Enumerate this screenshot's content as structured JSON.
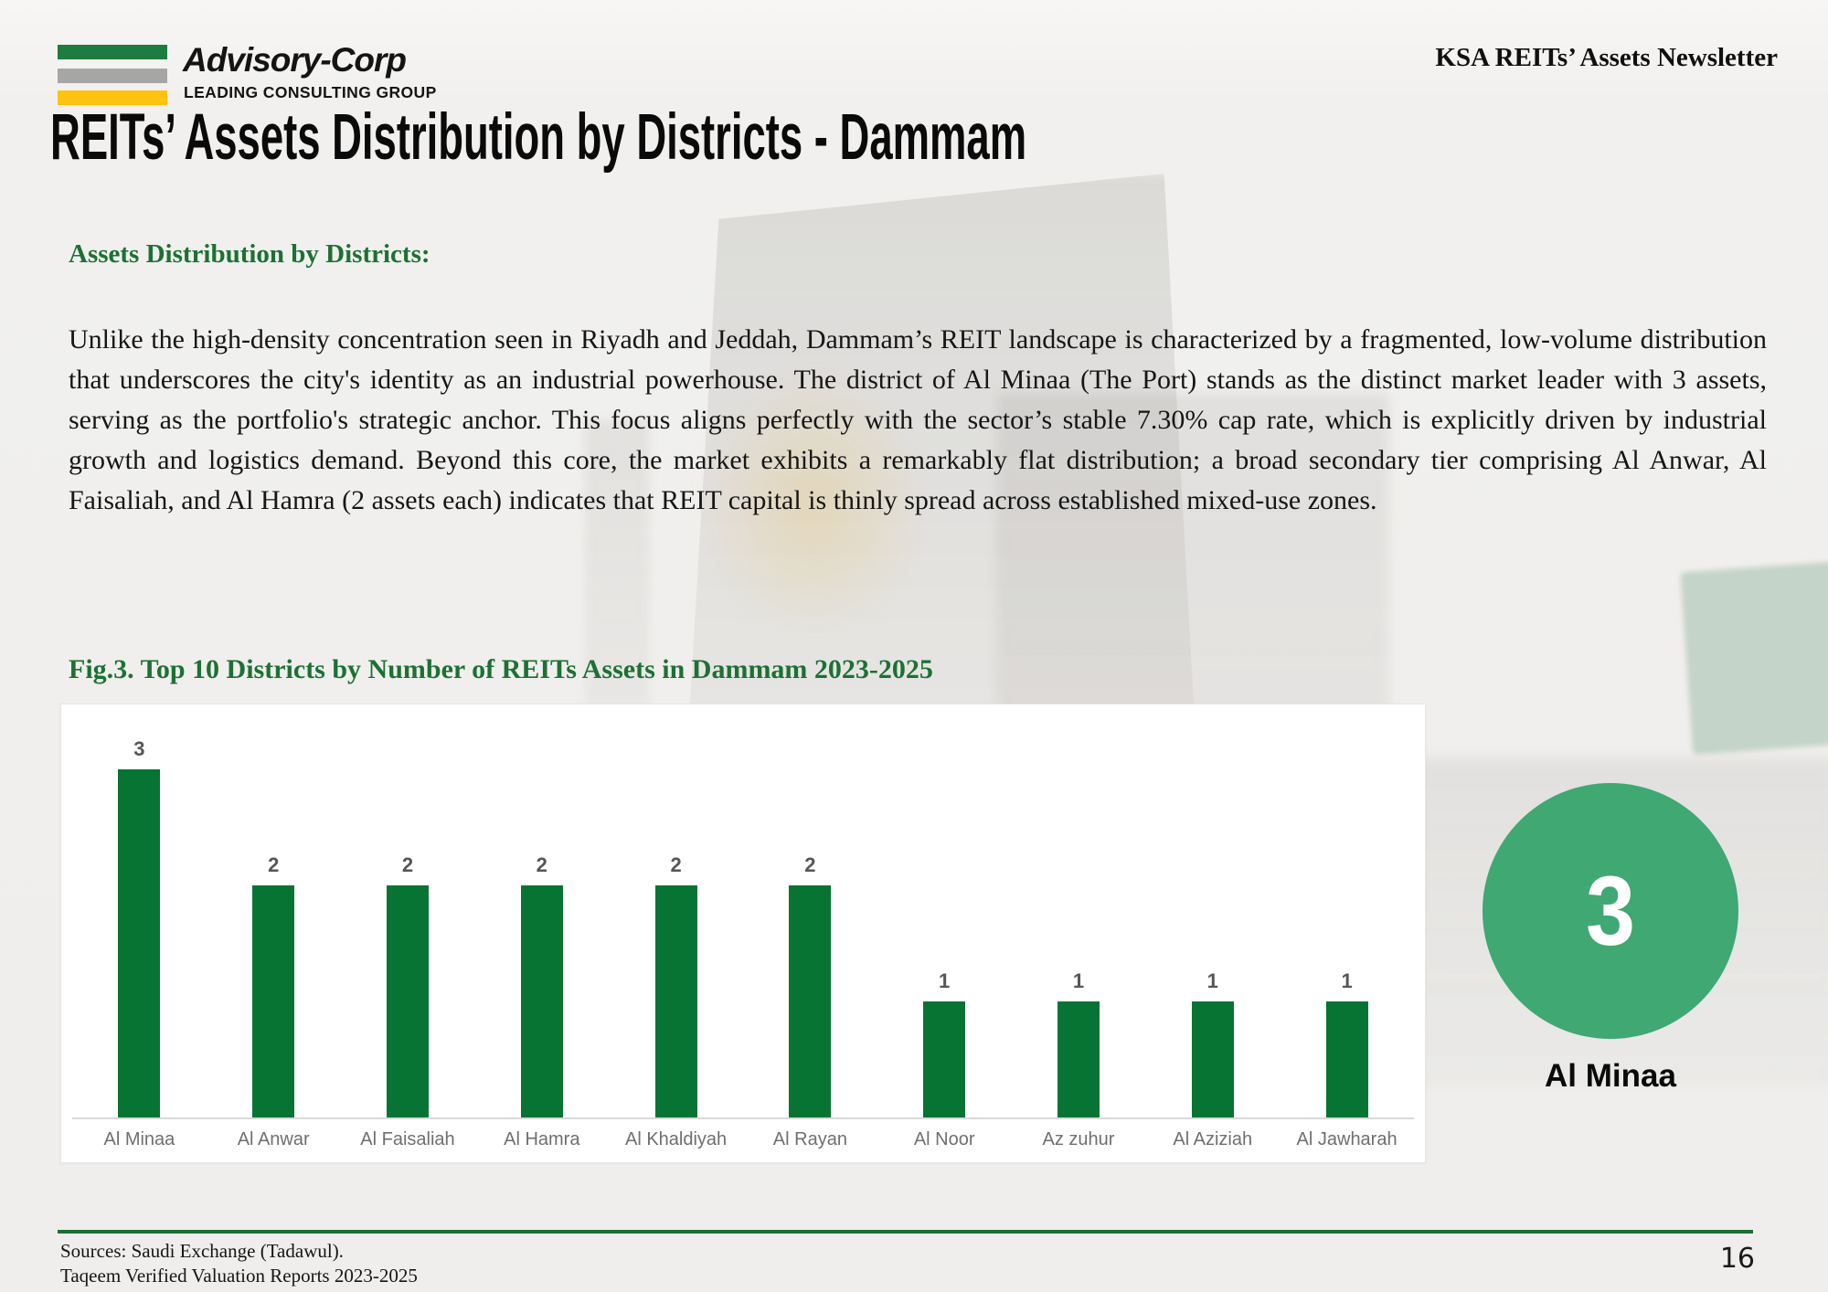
{
  "header": {
    "brand": "Advisory-Corp",
    "tagline": "LEADING CONSULTING GROUP",
    "logo_bar_colors": [
      "#1e7c3f",
      "#a6a6a5",
      "#ffc20e"
    ],
    "newsletter_title": "KSA REITs’ Assets Newsletter"
  },
  "page_title": "REITs’ Assets Distribution by Districts - Dammam",
  "section": {
    "heading": "Assets Distribution by Districts:",
    "body": "Unlike the high-density concentration seen in Riyadh and Jeddah, Dammam’s REIT landscape is characterized by a fragmented, low-volume distribution that underscores the city's identity as an industrial powerhouse. The district of Al Minaa (The Port) stands as the distinct market leader with 3 assets, serving as the portfolio's strategic anchor. This focus aligns perfectly with the sector’s stable 7.30% cap rate, which is explicitly driven by industrial growth and logistics demand. Beyond this core, the market exhibits a remarkably flat distribution; a broad secondary tier comprising Al Anwar, Al Faisaliah, and Al Hamra (2 assets each) indicates that REIT capital is thinly spread across established mixed-use zones."
  },
  "figure_caption": "Fig.3. Top 10 Districts by Number of REITs Assets in Dammam 2023-2025",
  "chart_data": {
    "type": "bar",
    "title": "Top 10 Districts by Number of REITs Assets in Dammam 2023-2025",
    "categories": [
      "Al Minaa",
      "Al Anwar",
      "Al Faisaliah",
      "Al Hamra",
      "Al Khaldiyah",
      "Al Rayan",
      "Al Noor",
      "Az zuhur",
      "Al Aziziah",
      "Al Jawharah"
    ],
    "values": [
      3,
      2,
      2,
      2,
      2,
      2,
      1,
      1,
      1,
      1
    ],
    "xlabel": "",
    "ylabel": "",
    "ylim": [
      0,
      3.5
    ],
    "grid": false,
    "legend": false,
    "bar_color": "#077434",
    "value_labels_shown": true
  },
  "highlight": {
    "value": "3",
    "label": "Al Minaa",
    "circle_color": "#3fa873"
  },
  "footer": {
    "source_line1": "Sources: Saudi Exchange (Tadawul).",
    "source_line2": "Taqeem Verified Valuation Reports 2023-2025",
    "page_number": "16"
  }
}
